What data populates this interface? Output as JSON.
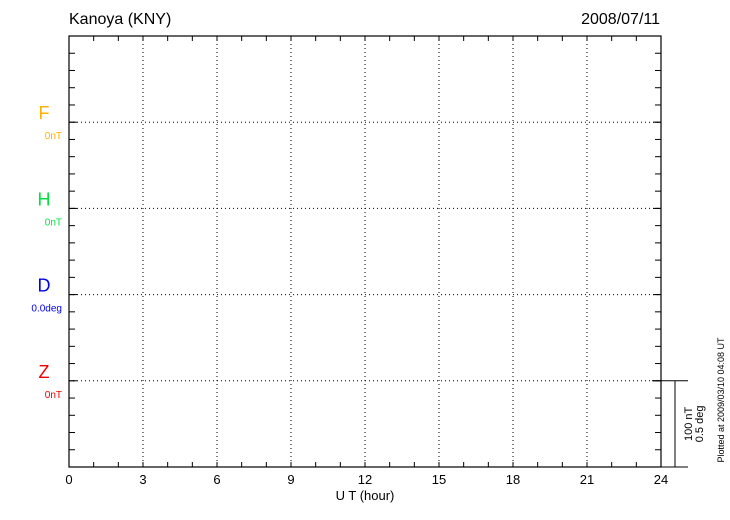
{
  "chart_data": {
    "type": "line",
    "title": "Kanoya (KNY)",
    "date": "2008/07/11",
    "xlabel": "U T (hour)",
    "xlim": [
      0,
      24
    ],
    "xticks": [
      "0",
      "3",
      "6",
      "9",
      "12",
      "15",
      "18",
      "21",
      "24"
    ],
    "grid": true,
    "panels": [
      {
        "name": "F",
        "baseline": "0nT",
        "color": "#ffb000"
      },
      {
        "name": "H",
        "baseline": "0nT",
        "color": "#00e040"
      },
      {
        "name": "D",
        "baseline": "0.0deg",
        "color": "#0000ee"
      },
      {
        "name": "Z",
        "baseline": "0nT",
        "color": "#ee0000"
      }
    ],
    "series": [],
    "scale_bar": {
      "line1": "100 nT",
      "line2": "0.5 deg"
    },
    "footer": "Plotted at 2009/03/10 04:08 UT"
  }
}
